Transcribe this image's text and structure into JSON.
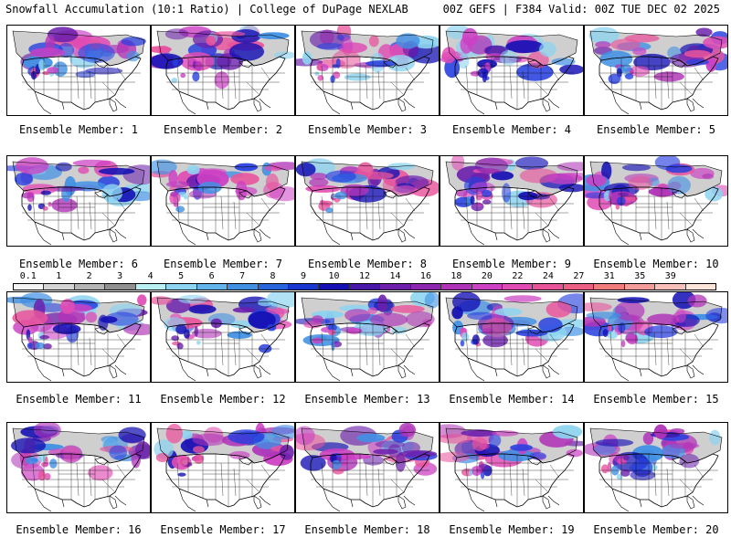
{
  "header": {
    "left": "Snowfall Accumulation (10:1 Ratio) | College of DuPage NEXLAB",
    "right": "00Z GEFS | F384 Valid: 00Z TUE DEC 02 2025"
  },
  "members": [
    {
      "label": "Ensemble Member: 1"
    },
    {
      "label": "Ensemble Member: 2"
    },
    {
      "label": "Ensemble Member: 3"
    },
    {
      "label": "Ensemble Member: 4"
    },
    {
      "label": "Ensemble Member: 5"
    },
    {
      "label": "Ensemble Member: 6"
    },
    {
      "label": "Ensemble Member: 7"
    },
    {
      "label": "Ensemble Member: 8"
    },
    {
      "label": "Ensemble Member: 9"
    },
    {
      "label": "Ensemble Member: 10"
    },
    {
      "label": "Ensemble Member: 11"
    },
    {
      "label": "Ensemble Member: 12"
    },
    {
      "label": "Ensemble Member: 13"
    },
    {
      "label": "Ensemble Member: 14"
    },
    {
      "label": "Ensemble Member: 15"
    },
    {
      "label": "Ensemble Member: 16"
    },
    {
      "label": "Ensemble Member: 17"
    },
    {
      "label": "Ensemble Member: 18"
    },
    {
      "label": "Ensemble Member: 19"
    },
    {
      "label": "Ensemble Member: 20"
    }
  ],
  "colorbar": {
    "labels": [
      "0.1",
      "1",
      "2",
      "3",
      "4",
      "5",
      "6",
      "7",
      "8",
      "9",
      "10",
      "12",
      "14",
      "16",
      "18",
      "20",
      "22",
      "24",
      "27",
      "31",
      "35",
      "39"
    ],
    "colors": [
      "#f4f4f4",
      "#d4d4d4",
      "#b4b4b4",
      "#909090",
      "#b8f0f4",
      "#8cd4f0",
      "#64b4ec",
      "#4090e4",
      "#2864dc",
      "#1838d0",
      "#1410b4",
      "#4818a8",
      "#6c20ac",
      "#8c28b0",
      "#b034b8",
      "#cc40c4",
      "#e04cb4",
      "#e8549c",
      "#ec6084",
      "#f07c7c",
      "#f49c98",
      "#f8c0b8",
      "#fce4d8"
    ]
  }
}
